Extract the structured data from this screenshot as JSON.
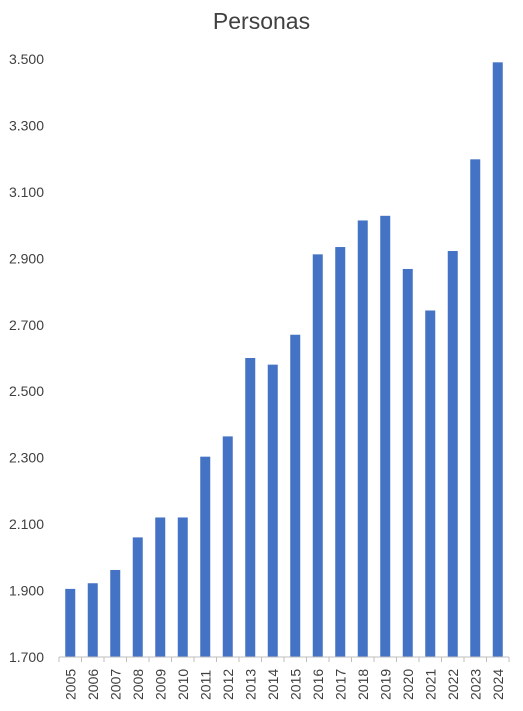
{
  "chart_data": {
    "type": "bar",
    "title": "Personas",
    "xlabel": "",
    "ylabel": "",
    "categories": [
      "2005",
      "2006",
      "2007",
      "2008",
      "2009",
      "2010",
      "2011",
      "2012",
      "2013",
      "2014",
      "2015",
      "2016",
      "2017",
      "2018",
      "2019",
      "2020",
      "2021",
      "2022",
      "2023",
      "2024"
    ],
    "values": [
      1905,
      1922,
      1962,
      2060,
      2120,
      2120,
      2303,
      2364,
      2600,
      2580,
      2670,
      2912,
      2934,
      3014,
      3028,
      2868,
      2743,
      2922,
      3198,
      3490
    ],
    "ylim": [
      1700,
      3500
    ],
    "yticks": [
      1700,
      1900,
      2100,
      2300,
      2500,
      2700,
      2900,
      3100,
      3300,
      3500
    ],
    "ytick_labels": [
      "1.700",
      "1.900",
      "2.100",
      "2.300",
      "2.500",
      "2.700",
      "2.900",
      "3.100",
      "3.300",
      "3.500"
    ],
    "grid": false,
    "legend": "none",
    "bar_color": "#4472C4",
    "axis_color": "#BFBFBF",
    "text_color": "#404040"
  }
}
